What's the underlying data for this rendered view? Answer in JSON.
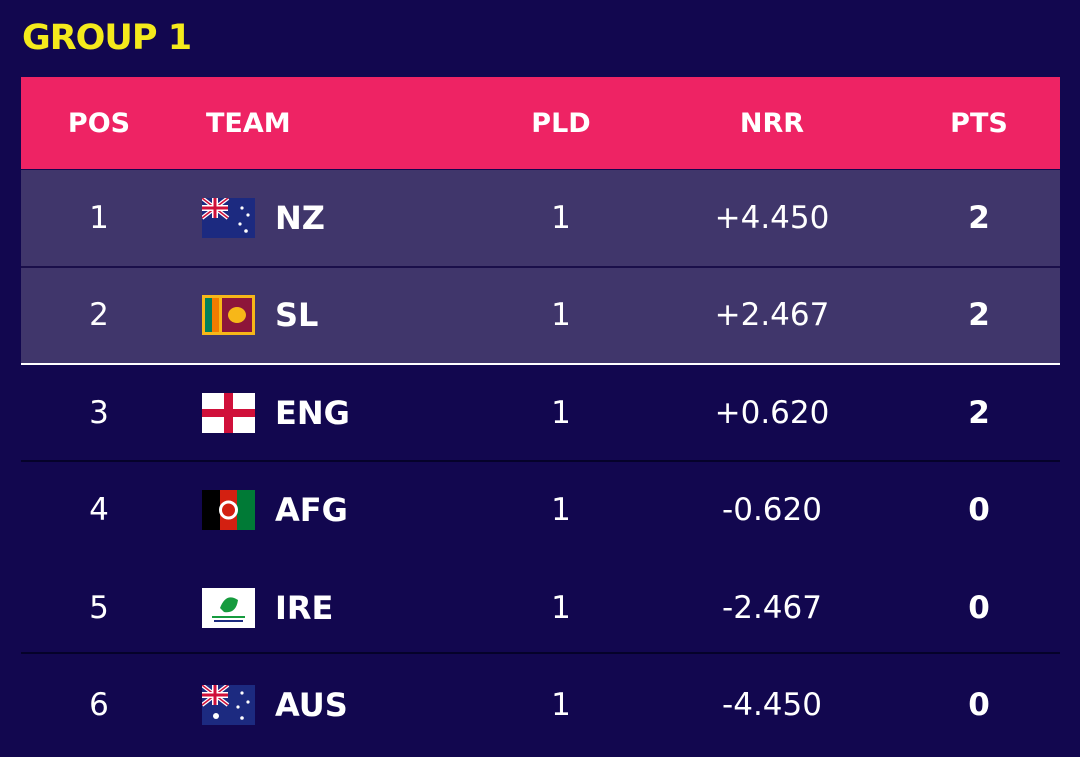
{
  "title": "GROUP 1",
  "table": {
    "headers": [
      "POS",
      "TEAM",
      "PLD",
      "NRR",
      "PTS"
    ],
    "rows": [
      [
        1,
        "NZ",
        1,
        "+4.450",
        2
      ],
      [
        2,
        "SL",
        1,
        "+2.467",
        2
      ],
      [
        3,
        "ENG",
        1,
        "+0.620",
        2
      ],
      [
        4,
        "AFG",
        1,
        "-0.620",
        0
      ],
      [
        5,
        "IRE",
        1,
        "-2.467",
        0
      ],
      [
        6,
        "AUS",
        1,
        "-4.450",
        0
      ]
    ]
  }
}
